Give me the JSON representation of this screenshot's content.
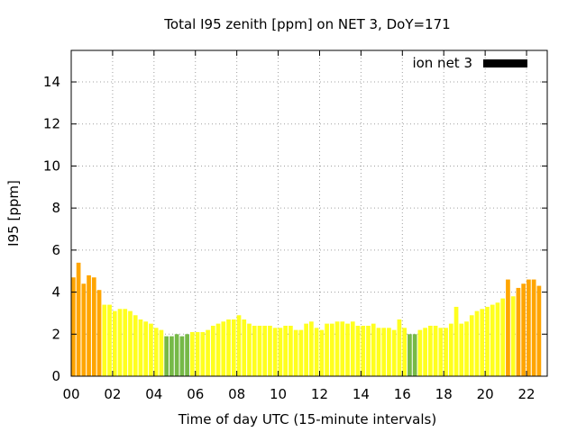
{
  "chart_data": {
    "type": "bar",
    "title": "Total I95 zenith [ppm] on NET 3, DoY=171",
    "xlabel": "Time of day UTC (15-minute intervals)",
    "ylabel": "I95 [ppm]",
    "xlim": [
      0,
      23
    ],
    "ylim": [
      0,
      15.5
    ],
    "xticks": [
      0,
      2,
      4,
      6,
      8,
      10,
      12,
      14,
      16,
      18,
      20,
      22
    ],
    "xtick_labels": [
      "00",
      "02",
      "04",
      "06",
      "08",
      "10",
      "12",
      "14",
      "16",
      "18",
      "20",
      "22"
    ],
    "yticks": [
      0,
      2,
      4,
      6,
      8,
      10,
      12,
      14
    ],
    "ytick_labels": [
      "0",
      "2",
      "4",
      "6",
      "8",
      "10",
      "12",
      "14"
    ],
    "grid": true,
    "legend": {
      "position": "top-right",
      "label": "ion net 3",
      "color": "#000000"
    },
    "interval_hours": 0.25,
    "colors": {
      "green": "#76b947",
      "yellow": "#ffff1e",
      "orange": "#ffa500"
    },
    "values": [
      4.7,
      5.4,
      4.4,
      4.8,
      4.7,
      4.1,
      3.4,
      3.4,
      3.1,
      3.2,
      3.2,
      3.1,
      2.9,
      2.7,
      2.6,
      2.5,
      2.3,
      2.2,
      1.9,
      1.9,
      2.0,
      1.9,
      2.0,
      2.1,
      2.1,
      2.1,
      2.2,
      2.4,
      2.5,
      2.6,
      2.7,
      2.7,
      2.9,
      2.7,
      2.5,
      2.4,
      2.4,
      2.4,
      2.4,
      2.3,
      2.3,
      2.4,
      2.4,
      2.2,
      2.2,
      2.5,
      2.6,
      2.3,
      2.2,
      2.5,
      2.5,
      2.6,
      2.6,
      2.5,
      2.6,
      2.4,
      2.4,
      2.4,
      2.5,
      2.3,
      2.3,
      2.3,
      2.2,
      2.7,
      2.3,
      2.0,
      2.0,
      2.2,
      2.3,
      2.4,
      2.4,
      2.3,
      2.3,
      2.5,
      3.3,
      2.5,
      2.6,
      2.9,
      3.1,
      3.2,
      3.3,
      3.4,
      3.5,
      3.7,
      4.6,
      3.8,
      4.2,
      4.4,
      4.6,
      4.6,
      4.3
    ],
    "bar_colors": [
      "orange",
      "orange",
      "orange",
      "orange",
      "orange",
      "orange",
      "yellow",
      "yellow",
      "yellow",
      "yellow",
      "yellow",
      "yellow",
      "yellow",
      "yellow",
      "yellow",
      "yellow",
      "yellow",
      "yellow",
      "green",
      "green",
      "green",
      "green",
      "green",
      "yellow",
      "yellow",
      "yellow",
      "yellow",
      "yellow",
      "yellow",
      "yellow",
      "yellow",
      "yellow",
      "yellow",
      "yellow",
      "yellow",
      "yellow",
      "yellow",
      "yellow",
      "yellow",
      "yellow",
      "yellow",
      "yellow",
      "yellow",
      "yellow",
      "yellow",
      "yellow",
      "yellow",
      "yellow",
      "yellow",
      "yellow",
      "yellow",
      "yellow",
      "yellow",
      "yellow",
      "yellow",
      "yellow",
      "yellow",
      "yellow",
      "yellow",
      "yellow",
      "yellow",
      "yellow",
      "yellow",
      "yellow",
      "yellow",
      "green",
      "green",
      "yellow",
      "yellow",
      "yellow",
      "yellow",
      "yellow",
      "yellow",
      "yellow",
      "yellow",
      "yellow",
      "yellow",
      "yellow",
      "yellow",
      "yellow",
      "yellow",
      "yellow",
      "yellow",
      "yellow",
      "orange",
      "yellow",
      "orange",
      "orange",
      "orange",
      "orange",
      "orange"
    ]
  }
}
